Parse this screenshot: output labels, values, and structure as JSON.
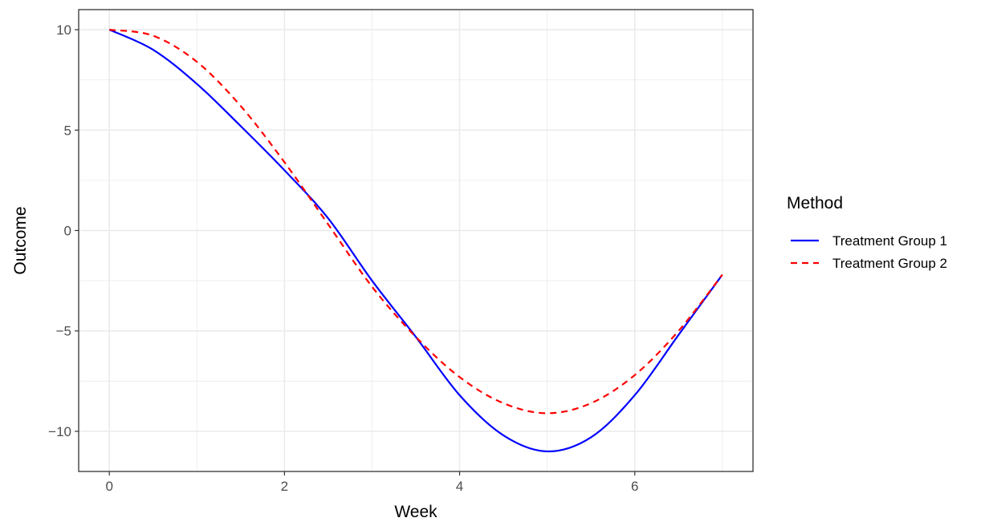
{
  "chart_data": {
    "type": "line",
    "xlabel": "Week",
    "ylabel": "Outcome",
    "xlim": [
      -0.35,
      7.35
    ],
    "ylim": [
      -12.0,
      11.0
    ],
    "x_ticks": [
      0,
      2,
      4,
      6
    ],
    "x_tick_labels": [
      "0",
      "2",
      "4",
      "6"
    ],
    "y_ticks": [
      -10,
      -5,
      0,
      5,
      10
    ],
    "y_tick_labels": [
      "−10",
      "−5",
      "0",
      "5",
      "10"
    ],
    "x_minor_ticks": [
      1,
      3,
      5,
      7
    ],
    "y_minor_ticks": [
      -7.5,
      -2.5,
      2.5,
      7.5
    ],
    "grid": true,
    "legend_position": "right",
    "legend_title": "Method",
    "series": [
      {
        "name": "Treatment Group 1",
        "color": "#0000ff",
        "dash": "solid",
        "x": [
          0,
          0.5,
          1,
          1.5,
          2,
          2.5,
          3,
          3.5,
          4,
          4.5,
          5,
          5.5,
          6,
          6.5,
          7
        ],
        "y": [
          10,
          9.0,
          7.3,
          5.2,
          3.0,
          0.6,
          -2.5,
          -5.3,
          -8.2,
          -10.2,
          -11.0,
          -10.3,
          -8.2,
          -5.2,
          -2.2
        ]
      },
      {
        "name": "Treatment Group 2",
        "color": "#ff0000",
        "dash": "dashed",
        "x": [
          0,
          0.5,
          1,
          1.5,
          2,
          2.5,
          3,
          3.5,
          4,
          4.5,
          5,
          5.5,
          6,
          6.5,
          7
        ],
        "y": [
          10,
          9.7,
          8.4,
          6.2,
          3.4,
          0.3,
          -2.8,
          -5.3,
          -7.3,
          -8.6,
          -9.1,
          -8.6,
          -7.2,
          -5.0,
          -2.2
        ]
      }
    ]
  }
}
